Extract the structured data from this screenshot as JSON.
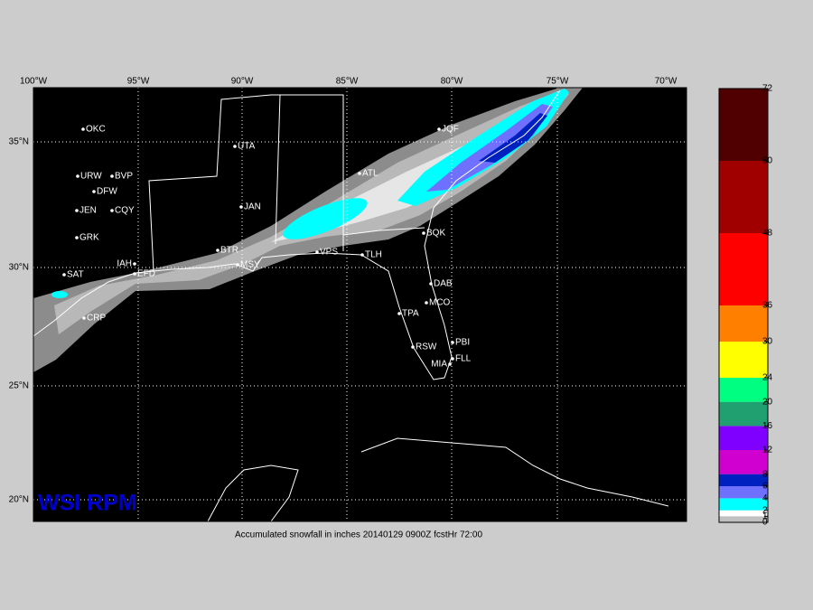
{
  "lon_labels": [
    "100°W",
    "95°W",
    "90°W",
    "85°W",
    "80°W",
    "75°W",
    "70°W"
  ],
  "lat_labels": [
    "35°N",
    "30°N",
    "25°N",
    "20°N"
  ],
  "cities": [
    "OKC",
    "URW",
    "BVP",
    "DFW",
    "JEN",
    "CQY",
    "GRK",
    "SAT",
    "IAH",
    "EFD",
    "CRP",
    "UTA",
    "JAN",
    "BTR",
    "MSY",
    "VPS",
    "TLH",
    "ATL",
    "JQF",
    "BQK",
    "DAB",
    "MCO",
    "TPA",
    "RSW",
    "PBI",
    "FLL",
    "MIA"
  ],
  "brand": "WSI RPM",
  "caption": "Accumulated snowfall in inches 20140129 0900Z fcstHr 72:00",
  "colorbar": {
    "levels": [
      0,
      1,
      2,
      4,
      6,
      8,
      12,
      16,
      20,
      24,
      30,
      36,
      48,
      60,
      72
    ],
    "colors": [
      "#c0c0c0",
      "#ffffff",
      "#00ffff",
      "#7070ff",
      "#0020c0",
      "#d000d0",
      "#8000ff",
      "#20a070",
      "#00ff80",
      "#ffff00",
      "#ff8000",
      "#ff0000",
      "#a00000",
      "#500000"
    ]
  }
}
